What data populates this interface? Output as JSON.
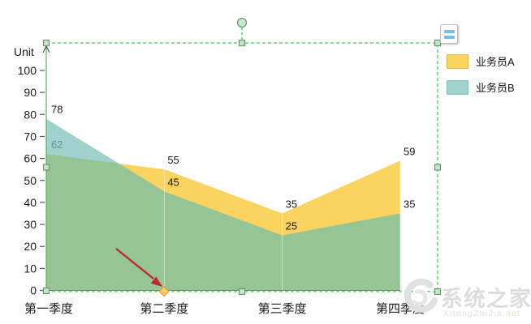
{
  "window": {
    "background": "#ffffff"
  },
  "chart_data": {
    "type": "area",
    "title": "",
    "unit_label": "Unit",
    "categories": [
      "第一季度",
      "第二季度",
      "第三季度",
      "第四季度"
    ],
    "series": [
      {
        "name": "业务员A",
        "color": "#FBD35F",
        "border_color": "#E0B54E",
        "values": [
          62,
          55,
          35,
          59
        ],
        "label_colors": [
          "#5E9593",
          "#1a1a1a",
          "#1a1a1a",
          "#1a1a1a"
        ]
      },
      {
        "name": "业务员B",
        "color": "#9FD2CC",
        "border_color": "#85C0BA",
        "values": [
          78,
          45,
          25,
          35
        ],
        "label_colors": [
          "#1a1a1a",
          "#1a1a1a",
          "#1a1a1a",
          "#1a1a1a"
        ]
      }
    ],
    "overlap_color": "#95C495",
    "ylim": [
      0,
      100
    ],
    "ytick_step": 10,
    "axis_color": "#77775a",
    "tick_color": "#555555",
    "label_color": "#1a1a1a",
    "grid": "faint-vertical-lines",
    "legend_position": "top-right-outside"
  },
  "selection": {
    "border_color": "#3FCB5A",
    "handle_fill": "#C3E9C4",
    "handle_stroke": "#6E936E",
    "has_rotation_handle": true
  },
  "annotation": {
    "arrow_color": "#C1272D",
    "diamond_fill": "#FBCE6B",
    "diamond_stroke": "#DFA13F"
  },
  "floating_button": {
    "icon": "format-lines-icon",
    "bar_color": "#74C2E3"
  },
  "watermark": {
    "title": "系统之家",
    "subtitle": "XitongZhiJia.net"
  }
}
